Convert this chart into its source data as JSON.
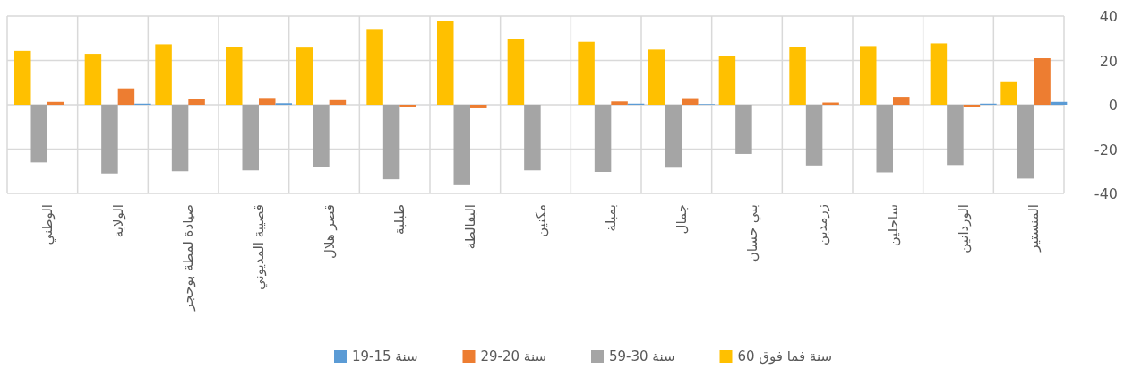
{
  "chart_data": {
    "type": "bar",
    "categories": [
      "الوطني",
      "الولاية",
      "صيادة لمطة بوحجر",
      "قصيبة المديوني",
      "قصر هلال",
      "طبلبة",
      "البقالطة",
      "مكنين",
      "بمبلة",
      "جمال",
      "بني حسان",
      "زرمدين",
      "ساحلين",
      "الوردانين",
      "المنستير"
    ],
    "series": [
      {
        "name": "60 سنة فما فوق",
        "color": "#ffc000",
        "values": [
          24.3,
          23,
          27.3,
          26,
          25.8,
          34.2,
          37.8,
          29.6,
          28.4,
          24.9,
          22.2,
          26.2,
          26.5,
          27.7,
          10.6
        ]
      },
      {
        "name": "59-30 سنة",
        "color": "#a5a5a5",
        "values": [
          -26,
          -31,
          -30,
          -29.6,
          -28,
          -33.6,
          -35.9,
          -29.6,
          -30.3,
          -28.4,
          -22.2,
          -27.4,
          -30.5,
          -27.2,
          -33.3
        ]
      },
      {
        "name": "29-20 سنة",
        "color": "#ed7d31",
        "values": [
          1.3,
          7.4,
          2.8,
          3.1,
          2.1,
          -0.8,
          -1.6,
          0,
          1.5,
          3,
          0,
          1,
          3.6,
          -1,
          21
        ]
      },
      {
        "name": "19-15 سنة",
        "color": "#5b9bd5",
        "values": [
          0,
          0.5,
          null,
          0.7,
          null,
          0,
          0,
          0,
          0.5,
          0.3,
          0,
          0,
          0,
          0.5,
          1.3
        ]
      }
    ],
    "ylim": [
      -40,
      40
    ],
    "yticks": [
      -40,
      -20,
      0,
      20,
      40
    ],
    "grid": true,
    "legend": "bottom"
  }
}
